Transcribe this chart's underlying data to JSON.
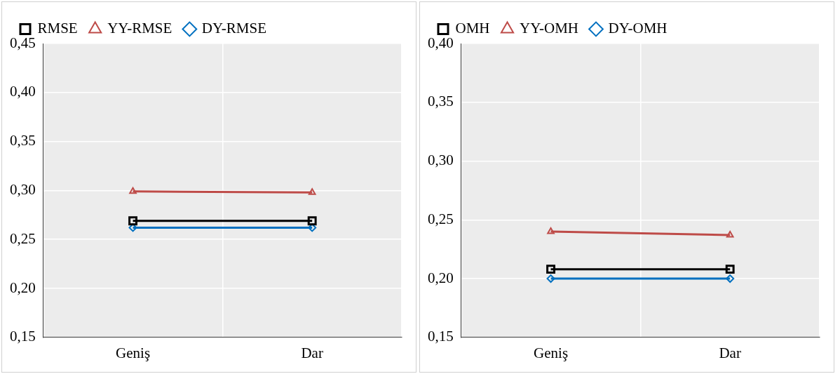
{
  "chart_data": [
    {
      "type": "line",
      "categories": [
        "Geniş",
        "Dar"
      ],
      "ylim": [
        0.15,
        0.45
      ],
      "yticks": [
        {
          "value": 0.15,
          "label": "0,15"
        },
        {
          "value": 0.2,
          "label": "0,20"
        },
        {
          "value": 0.25,
          "label": "0,25"
        },
        {
          "value": 0.3,
          "label": "0,30"
        },
        {
          "value": 0.35,
          "label": "0,35"
        },
        {
          "value": 0.4,
          "label": "0,40"
        },
        {
          "value": 0.45,
          "label": "0,45"
        }
      ],
      "grid": true,
      "legend": "top",
      "series": [
        {
          "name": "RMSE",
          "color": "#000000",
          "marker": "square",
          "values": [
            0.269,
            0.269
          ]
        },
        {
          "name": "YY-RMSE",
          "color": "#be4b48",
          "marker": "triangle",
          "values": [
            0.299,
            0.298
          ]
        },
        {
          "name": "DY-RMSE",
          "color": "#0070c0",
          "marker": "diamond",
          "values": [
            0.262,
            0.262
          ]
        }
      ]
    },
    {
      "type": "line",
      "categories": [
        "Geniş",
        "Dar"
      ],
      "ylim": [
        0.15,
        0.4
      ],
      "yticks": [
        {
          "value": 0.15,
          "label": "0,15"
        },
        {
          "value": 0.2,
          "label": "0,20"
        },
        {
          "value": 0.25,
          "label": "0,25"
        },
        {
          "value": 0.3,
          "label": "0,30"
        },
        {
          "value": 0.35,
          "label": "0,35"
        },
        {
          "value": 0.4,
          "label": "0,40"
        }
      ],
      "grid": true,
      "legend": "top",
      "series": [
        {
          "name": "OMH",
          "color": "#000000",
          "marker": "square",
          "values": [
            0.208,
            0.208
          ]
        },
        {
          "name": "YY-OMH",
          "color": "#be4b48",
          "marker": "triangle",
          "values": [
            0.24,
            0.237
          ]
        },
        {
          "name": "DY-OMH",
          "color": "#0070c0",
          "marker": "diamond",
          "values": [
            0.2,
            0.2
          ]
        }
      ]
    }
  ]
}
